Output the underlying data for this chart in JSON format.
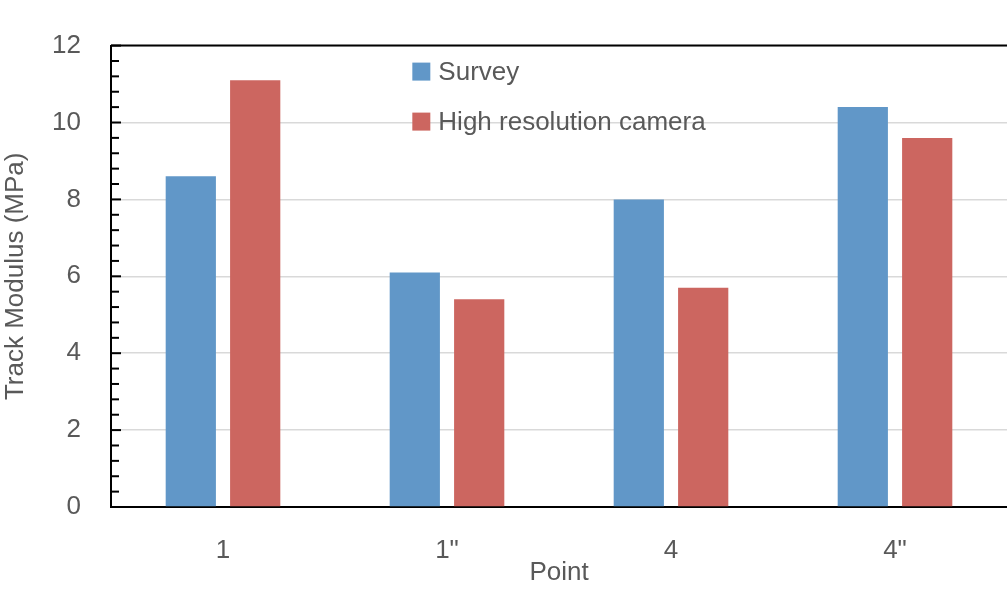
{
  "chart_data": {
    "type": "bar",
    "xlabel": "Point",
    "ylabel": "Track Modulus (MPa)",
    "categories": [
      "1",
      "1\"",
      "4",
      "4\""
    ],
    "series": [
      {
        "name": "Survey",
        "color": "#6197c8",
        "values": [
          8.6,
          6.1,
          8.0,
          10.4
        ]
      },
      {
        "name": "High resolution camera",
        "color": "#cc6660",
        "values": [
          11.1,
          5.4,
          5.7,
          9.6
        ]
      }
    ],
    "ylim": [
      0,
      12
    ],
    "yticks": [
      0,
      {
        "value": 0.4,
        "label": null
      },
      {
        "value": 0.8,
        "label": null
      },
      {
        "value": 1.2,
        "label": null
      },
      {
        "value": 1.6,
        "label": null
      },
      2,
      {
        "value": 2.4,
        "label": null
      },
      {
        "value": 2.8,
        "label": null
      },
      {
        "value": 3.2,
        "label": null
      },
      {
        "value": 3.6,
        "label": null
      },
      4,
      {
        "value": 4.4,
        "label": null
      },
      {
        "value": 4.8,
        "label": null
      },
      {
        "value": 5.2,
        "label": null
      },
      {
        "value": 5.6,
        "label": null
      },
      6,
      {
        "value": 6.4,
        "label": null
      },
      {
        "value": 6.8,
        "label": null
      },
      {
        "value": 7.2,
        "label": null
      },
      {
        "value": 7.6,
        "label": null
      },
      8,
      {
        "value": 8.4,
        "label": null
      },
      {
        "value": 8.8,
        "label": null
      },
      {
        "value": 9.2,
        "label": null
      },
      {
        "value": 9.6,
        "label": null
      },
      10,
      {
        "value": 10.4,
        "label": null
      },
      {
        "value": 10.8,
        "label": null
      },
      {
        "value": 11.2,
        "label": null
      },
      {
        "value": 11.6,
        "label": null
      },
      12
    ],
    "grid": "y",
    "legend": "top"
  }
}
